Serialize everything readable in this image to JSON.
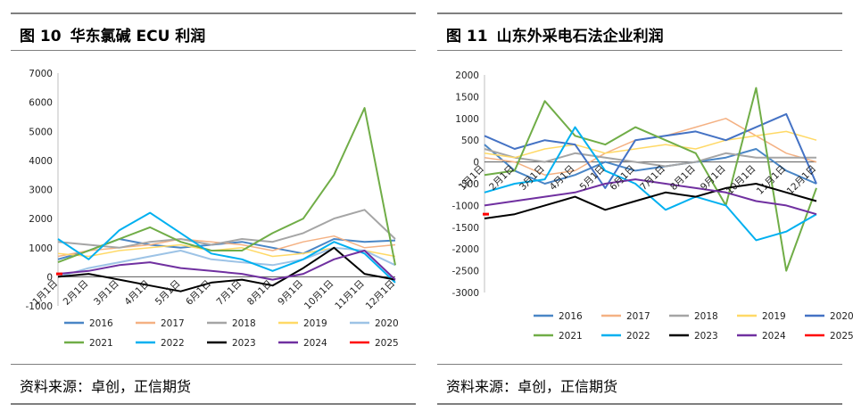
{
  "left": {
    "title_num": "图 10",
    "title_text": "华东氯碱 ECU 利润",
    "source": "资料来源：卓创，正信期货",
    "chart_data": {
      "type": "line",
      "title": "华东氯碱 ECU 利润",
      "ylim": [
        -1000,
        7000
      ],
      "yticks": [
        "7000",
        "6000",
        "5000",
        "4000",
        "3000",
        "2000",
        "1000",
        "0",
        "-1000"
      ],
      "xticks": [
        "1月1日",
        "2月1日",
        "3月1日",
        "4月1日",
        "5月1日",
        "6月1日",
        "7月1日",
        "8月1日",
        "9月1日",
        "10月1日",
        "11月1日",
        "12月1日"
      ],
      "legend_position": "bottom",
      "series": [
        {
          "name": "2016",
          "color": "#4a86c6",
          "width": 2,
          "values": [
            600,
            900,
            1300,
            1100,
            1000,
            1100,
            1200,
            1000,
            800,
            1300,
            1200,
            1250
          ]
        },
        {
          "name": "2017",
          "color": "#f4b183",
          "width": 1.5,
          "values": [
            700,
            900,
            1000,
            1100,
            1300,
            1200,
            1100,
            900,
            1200,
            1400,
            1000,
            1100
          ]
        },
        {
          "name": "2018",
          "color": "#a5a5a5",
          "width": 2,
          "values": [
            1200,
            1100,
            1000,
            1200,
            1300,
            1100,
            1300,
            1200,
            1500,
            2000,
            2300,
            1300
          ]
        },
        {
          "name": "2019",
          "color": "#ffd966",
          "width": 1.5,
          "values": [
            800,
            700,
            900,
            1000,
            1100,
            900,
            1000,
            700,
            800,
            1000,
            900,
            700
          ]
        },
        {
          "name": "2020",
          "color": "#9dc3e6",
          "width": 2,
          "values": [
            0,
            300,
            500,
            700,
            900,
            600,
            500,
            400,
            600,
            1000,
            900,
            400
          ]
        },
        {
          "name": "2021",
          "color": "#70ad47",
          "width": 2,
          "values": [
            500,
            900,
            1300,
            1700,
            1200,
            900,
            900,
            1500,
            2000,
            3500,
            5800,
            400
          ]
        },
        {
          "name": "2022",
          "color": "#00b0f0",
          "width": 2,
          "values": [
            1300,
            600,
            1600,
            2200,
            1500,
            800,
            600,
            200,
            600,
            1200,
            800,
            -200
          ]
        },
        {
          "name": "2023",
          "color": "#000000",
          "width": 2,
          "values": [
            0,
            100,
            -100,
            -300,
            -500,
            -200,
            -100,
            -300,
            300,
            1000,
            100,
            -100
          ]
        },
        {
          "name": "2024",
          "color": "#7030a0",
          "width": 2,
          "values": [
            100,
            200,
            400,
            500,
            300,
            200,
            100,
            -100,
            100,
            600,
            900,
            -100
          ]
        },
        {
          "name": "2025",
          "color": "#ff0000",
          "width": 2,
          "values": [
            100
          ]
        }
      ]
    }
  },
  "right": {
    "title_num": "图 11",
    "title_text": "山东外采电石法企业利润",
    "source": "资料来源：卓创，正信期货",
    "chart_data": {
      "type": "line",
      "title": "山东外采电石法企业利润",
      "ylim": [
        -3000,
        2000
      ],
      "yticks": [
        "2000",
        "1500",
        "1000",
        "500",
        "0",
        "-500",
        "-1000",
        "-1500",
        "-2000",
        "-2500",
        "-3000"
      ],
      "xticks": [
        "1月1日",
        "2月1日",
        "3月1日",
        "4月1日",
        "5月1日",
        "6月1日",
        "7月1日",
        "8月1日",
        "9月1日",
        "10月1日",
        "11月1日",
        "12月1日"
      ],
      "legend_position": "bottom",
      "series": [
        {
          "name": "2016",
          "color": "#4a86c6",
          "width": 2,
          "values": [
            400,
            -200,
            -500,
            -300,
            0,
            -200,
            -100,
            0,
            100,
            300,
            -200,
            -500
          ]
        },
        {
          "name": "2017",
          "color": "#f4b183",
          "width": 1.5,
          "values": [
            100,
            0,
            -300,
            -200,
            200,
            500,
            600,
            800,
            1000,
            600,
            200,
            0
          ]
        },
        {
          "name": "2018",
          "color": "#a5a5a5",
          "width": 2,
          "values": [
            300,
            100,
            0,
            200,
            100,
            0,
            -100,
            0,
            200,
            100,
            100,
            100
          ]
        },
        {
          "name": "2019",
          "color": "#ffd966",
          "width": 1.5,
          "values": [
            200,
            100,
            300,
            400,
            200,
            300,
            400,
            300,
            500,
            600,
            700,
            500
          ]
        },
        {
          "name": "2020",
          "color": "#4472c4",
          "width": 2,
          "values": [
            600,
            300,
            500,
            400,
            -600,
            500,
            600,
            700,
            500,
            800,
            1100,
            -500
          ]
        },
        {
          "name": "2021",
          "color": "#70ad47",
          "width": 2,
          "values": [
            -300,
            -200,
            1400,
            600,
            400,
            800,
            500,
            200,
            -1000,
            1700,
            -2500,
            -600
          ]
        },
        {
          "name": "2022",
          "color": "#00b0f0",
          "width": 2,
          "values": [
            -700,
            -500,
            -400,
            800,
            -200,
            -500,
            -1100,
            -800,
            -1000,
            -1800,
            -1600,
            -1200
          ]
        },
        {
          "name": "2023",
          "color": "#000000",
          "width": 2,
          "values": [
            -1300,
            -1200,
            -1000,
            -800,
            -1100,
            -900,
            -700,
            -800,
            -600,
            -500,
            -700,
            -900
          ]
        },
        {
          "name": "2024",
          "color": "#7030a0",
          "width": 2,
          "values": [
            -1000,
            -900,
            -800,
            -700,
            -500,
            -400,
            -500,
            -600,
            -700,
            -900,
            -1000,
            -1200
          ]
        },
        {
          "name": "2025",
          "color": "#ff0000",
          "width": 2,
          "values": [
            -1200
          ]
        }
      ]
    }
  }
}
